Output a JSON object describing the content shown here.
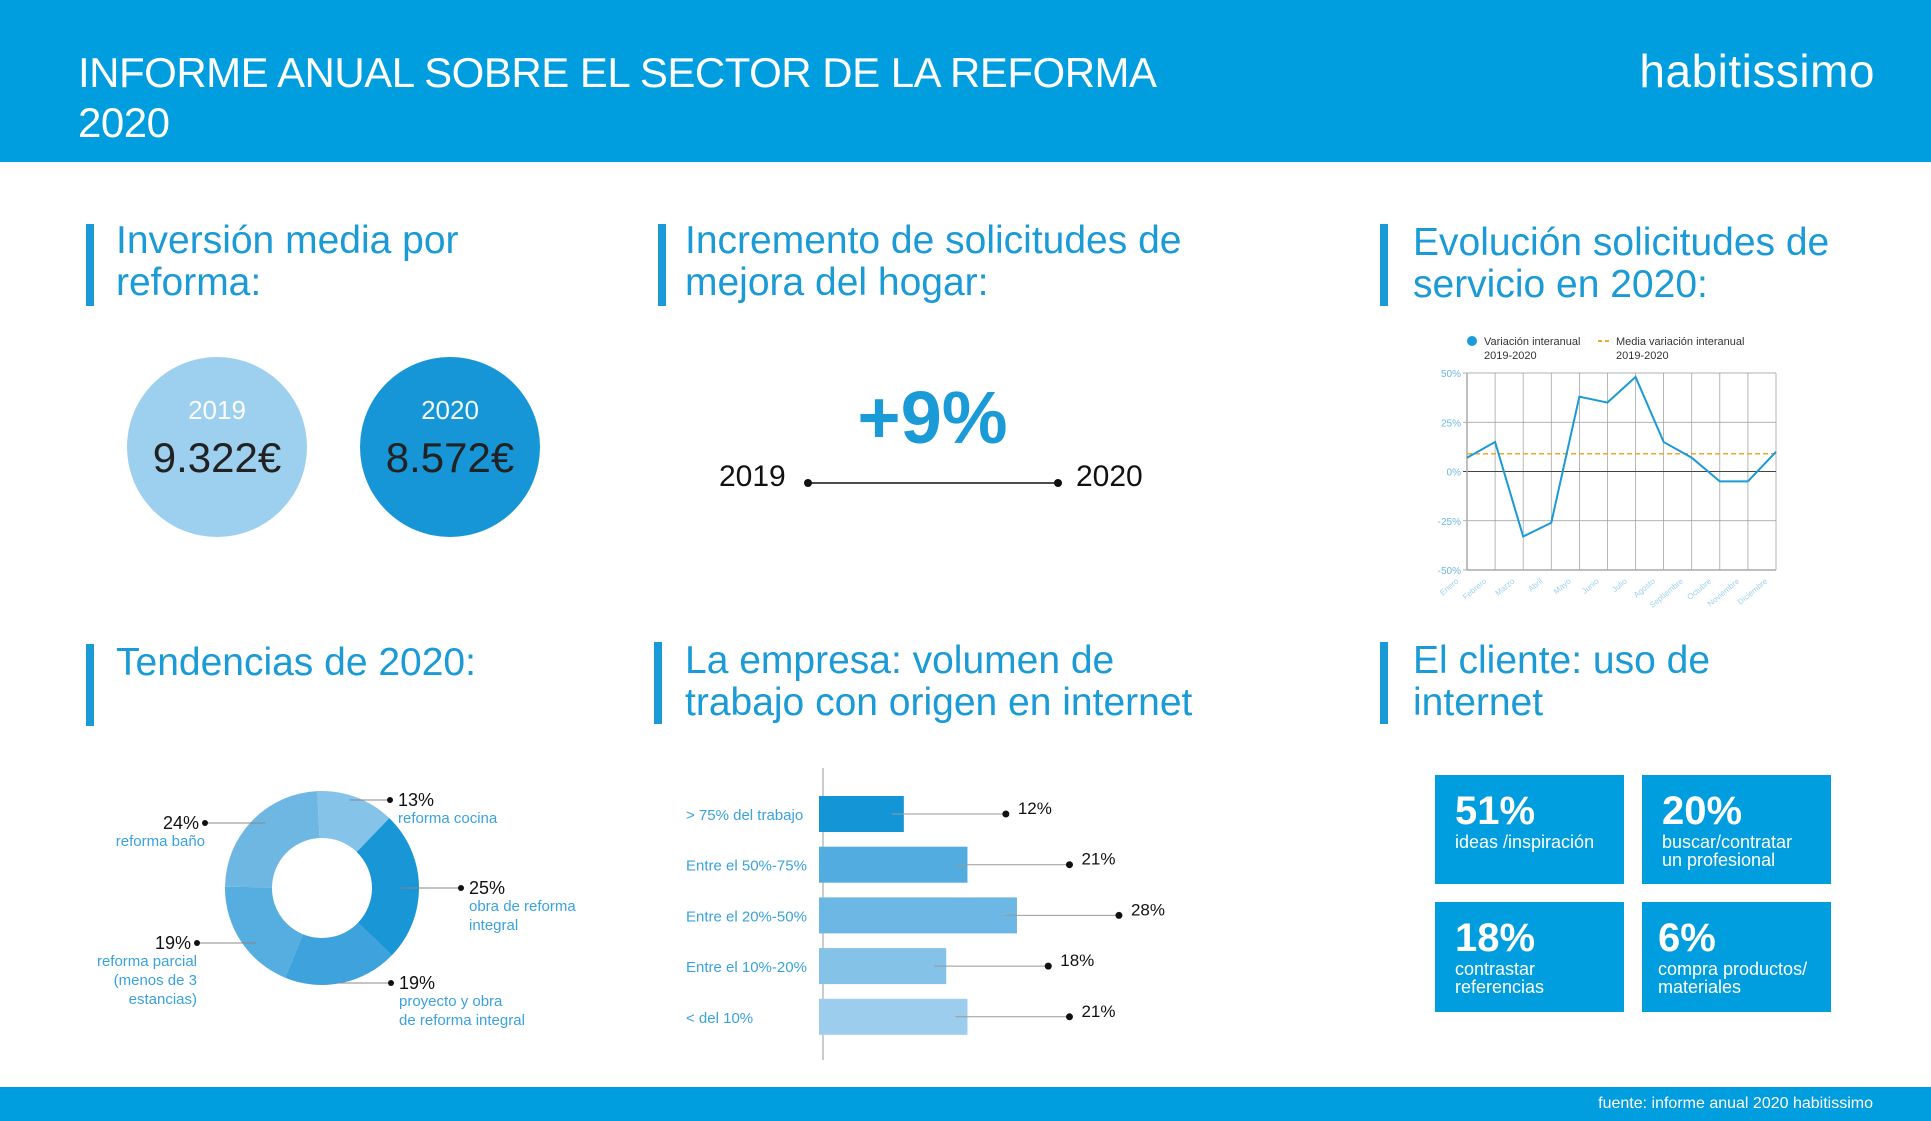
{
  "header": {
    "title_line1": "INFORME ANUAL SOBRE  EL SECTOR DE LA REFORMA",
    "title_line2": "2020",
    "logo": "habitissimo"
  },
  "footer": {
    "source": "fuente: informe anual 2020 habitissimo"
  },
  "colors": {
    "primary": "#009ddf",
    "heading": "#1a9ad6",
    "circle_2019": "#9dcfee",
    "circle_2020": "#1696d6",
    "average_line": "#f5a623"
  },
  "inversion": {
    "heading_line1": "Inversión media por",
    "heading_line2": "reforma:",
    "items": [
      {
        "year": "2019",
        "value": "9.322€"
      },
      {
        "year": "2020",
        "value": "8.572€"
      }
    ]
  },
  "incremento": {
    "heading_line1": "Incremento de solicitudes de",
    "heading_line2": "mejora del hogar:",
    "value": "+9%",
    "from": "2019",
    "to": "2020"
  },
  "evolucion": {
    "heading_line1": "Evolución solicitudes de",
    "heading_line2": "servicio en 2020:"
  },
  "tendencias": {
    "heading": "Tendencias de 2020:"
  },
  "empresa": {
    "heading_line1": "La empresa: volumen de",
    "heading_line2": "trabajo con origen en internet"
  },
  "cliente": {
    "heading_line1": "El cliente: uso de",
    "heading_line2": "internet",
    "boxes": [
      {
        "value": "51%",
        "label_line1": "ideas /inspiración",
        "label_line2": ""
      },
      {
        "value": "20%",
        "label_line1": "buscar/contratar",
        "label_line2": "un profesional"
      },
      {
        "value": "18%",
        "label_line1": "contrastar",
        "label_line2": "referencias"
      },
      {
        "value": "6%",
        "label_line1": "compra productos/",
        "label_line2": "materiales"
      }
    ]
  },
  "chart_data": [
    {
      "type": "line",
      "title": "",
      "categories": [
        "Enero",
        "Febrero",
        "Marzo",
        "Abril",
        "Mayo",
        "Junio",
        "Julio",
        "Agosto",
        "Septiembre",
        "Octubre",
        "Noviembre",
        "Diciembre"
      ],
      "series": [
        {
          "name": "Variación interanual 2019-2020",
          "values": [
            7,
            15,
            -33,
            -26,
            38,
            35,
            48,
            15,
            7,
            -5,
            -5,
            10
          ]
        },
        {
          "name": "Media variación interanual 2019-2020",
          "values": [
            9,
            9,
            9,
            9,
            9,
            9,
            9,
            9,
            9,
            9,
            9,
            9
          ],
          "style": "dashed"
        }
      ],
      "yticks": [
        "50%",
        "25%",
        "0%",
        "-25%",
        "-50%"
      ],
      "ylim": [
        -50,
        50
      ],
      "grid": true,
      "legend": "top"
    },
    {
      "type": "pie",
      "donut": true,
      "slices": [
        {
          "label": "reforma cocina",
          "value": 13,
          "color": "#85c3e8"
        },
        {
          "label": "obra de reforma integral",
          "value": 25,
          "color": "#1896d5"
        },
        {
          "label": "proyecto y obra de reforma integral",
          "value": 19,
          "color": "#3ea3dc"
        },
        {
          "label": "reforma parcial (menos de 3 estancias)",
          "value": 19,
          "color": "#55ade0"
        },
        {
          "label": "reforma baño",
          "value": 24,
          "color": "#6eb7e3"
        }
      ],
      "value_labels": [
        "13%",
        "25%",
        "19%",
        "19%",
        "24%"
      ],
      "label_lines": [
        [
          "reforma cocina"
        ],
        [
          "obra de reforma",
          "integral"
        ],
        [
          "proyecto y obra",
          "de reforma integral"
        ],
        [
          "reforma parcial",
          "(menos de 3",
          "estancias)"
        ],
        [
          "reforma baño"
        ]
      ]
    },
    {
      "type": "bar",
      "orientation": "horizontal",
      "categories": [
        "> 75% del trabajo",
        "Entre el 50%-75%",
        "Entre el 20%-50%",
        "Entre el 10%-20%",
        "< del 10%"
      ],
      "values": [
        12,
        21,
        28,
        18,
        21
      ],
      "value_labels": [
        "12%",
        "21%",
        "28%",
        "18%",
        "21%"
      ],
      "colors": [
        "#1496d6",
        "#52ace0",
        "#6cb7e3",
        "#84c2e8",
        "#9ccdec"
      ]
    }
  ]
}
